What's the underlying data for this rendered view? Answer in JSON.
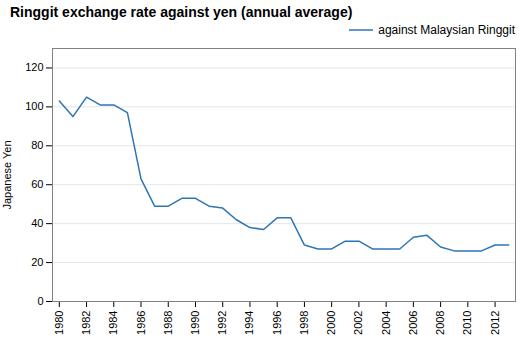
{
  "chart_data": {
    "type": "line",
    "title": "Ringgit exchange rate against yen (annual average)",
    "ylabel": "Japanese Yen",
    "x": [
      1980,
      1981,
      1982,
      1983,
      1984,
      1985,
      1986,
      1987,
      1988,
      1989,
      1990,
      1991,
      1992,
      1993,
      1994,
      1995,
      1996,
      1997,
      1998,
      1999,
      2000,
      2001,
      2002,
      2003,
      2004,
      2005,
      2006,
      2007,
      2008,
      2009,
      2010,
      2011,
      2012,
      2013
    ],
    "series": [
      {
        "name": "against Malaysian Ringgit",
        "color": "#2E75B6",
        "values": [
          103,
          95,
          105,
          101,
          101,
          97,
          63,
          49,
          49,
          53,
          53,
          49,
          48,
          42,
          38,
          37,
          43,
          43,
          29,
          27,
          27,
          31,
          31,
          27,
          27,
          27,
          33,
          34,
          28,
          26,
          26,
          26,
          29,
          29
        ]
      }
    ],
    "xlim": [
      1979.5,
      2013.5
    ],
    "xticks": [
      1980,
      1982,
      1984,
      1986,
      1988,
      1990,
      1992,
      1994,
      1996,
      1998,
      2000,
      2002,
      2004,
      2006,
      2008,
      2010,
      2012
    ],
    "ylim": [
      0,
      130
    ],
    "yticks": [
      0,
      20,
      40,
      60,
      80,
      100,
      120
    ],
    "grid": true,
    "legend": "right"
  }
}
